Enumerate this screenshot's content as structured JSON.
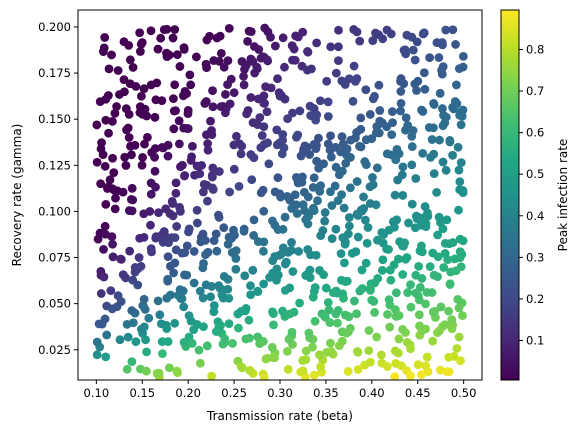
{
  "chart_data": {
    "type": "scatter",
    "title": "",
    "xlabel": "Transmission rate (beta)",
    "ylabel": "Recovery rate (gamma)",
    "colorbar_label": "Peak infection rate",
    "colormap": "viridis",
    "color_range": [
      0.005,
      0.895
    ],
    "colormap_stops": [
      "#440154",
      "#482475",
      "#414487",
      "#355f8d",
      "#2a788e",
      "#21918c",
      "#22a884",
      "#44bf70",
      "#7ad151",
      "#bddf26",
      "#fde725"
    ],
    "xlim": [
      0.08,
      0.52
    ],
    "ylim": [
      0.0086,
      0.2092
    ],
    "xticks": [
      "0.10",
      "0.15",
      "0.20",
      "0.25",
      "0.30",
      "0.35",
      "0.40",
      "0.45",
      "0.50"
    ],
    "xtick_values": [
      0.1,
      0.15,
      0.2,
      0.25,
      0.3,
      0.35,
      0.4,
      0.45,
      0.5
    ],
    "yticks": [
      "0.025",
      "0.050",
      "0.075",
      "0.100",
      "0.125",
      "0.150",
      "0.175",
      "0.200"
    ],
    "ytick_values": [
      0.025,
      0.05,
      0.075,
      0.1,
      0.125,
      0.15,
      0.175,
      0.2
    ],
    "cbar_ticks": [
      "0.1",
      "0.2",
      "0.3",
      "0.4",
      "0.5",
      "0.6",
      "0.7",
      "0.8"
    ],
    "cbar_tick_values": [
      0.1,
      0.2,
      0.3,
      0.4,
      0.5,
      0.6,
      0.7,
      0.8
    ],
    "grid": false,
    "legend": "none",
    "point_count": 1000,
    "value_model": "peak = max(0.005, 1 - (gamma/beta)(1 + ln(beta/gamma))) over beta in [0.10, 0.50], gamma in [0.01, 0.20]"
  }
}
